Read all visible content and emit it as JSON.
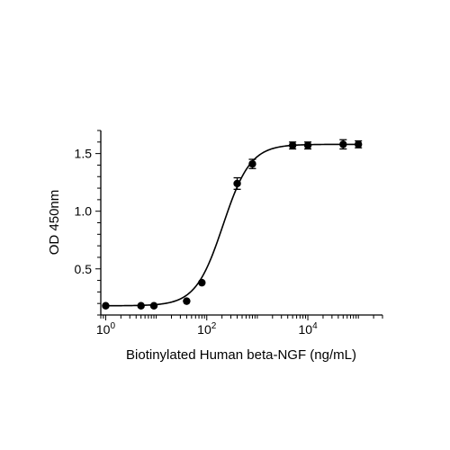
{
  "chart_data": {
    "type": "scatter",
    "title": "",
    "xlabel": "Biotinylated Human beta-NGF (ng/mL)",
    "ylabel": "OD 450nm",
    "x_scale": "log10",
    "xlim": [
      0.8,
      300000
    ],
    "ylim": [
      0.1,
      1.7
    ],
    "x_major_ticks": [
      {
        "value": 1,
        "base": "10",
        "exp": "0"
      },
      {
        "value": 100,
        "base": "10",
        "exp": "2"
      },
      {
        "value": 10000,
        "base": "10",
        "exp": "4"
      }
    ],
    "y_ticks": [
      {
        "value": 0.5,
        "label": "0.5"
      },
      {
        "value": 1.0,
        "label": "1.0"
      },
      {
        "value": 1.5,
        "label": "1.5"
      }
    ],
    "grid": false,
    "legend": "none",
    "color": "#000000",
    "series": [
      {
        "x": [
          1,
          5,
          9,
          40,
          80,
          400,
          800,
          5000,
          10000,
          50000,
          100000
        ],
        "y": [
          0.18,
          0.18,
          0.18,
          0.22,
          0.38,
          1.24,
          1.41,
          1.57,
          1.57,
          1.58,
          1.58
        ],
        "error": [
          0.01,
          0.01,
          0.01,
          0.01,
          0.01,
          0.05,
          0.04,
          0.03,
          0.03,
          0.04,
          0.03
        ]
      }
    ],
    "fit_curve": {
      "model": "4PL",
      "bottom": 0.18,
      "top": 1.58,
      "ec50": 210,
      "hill": 1.6
    }
  }
}
